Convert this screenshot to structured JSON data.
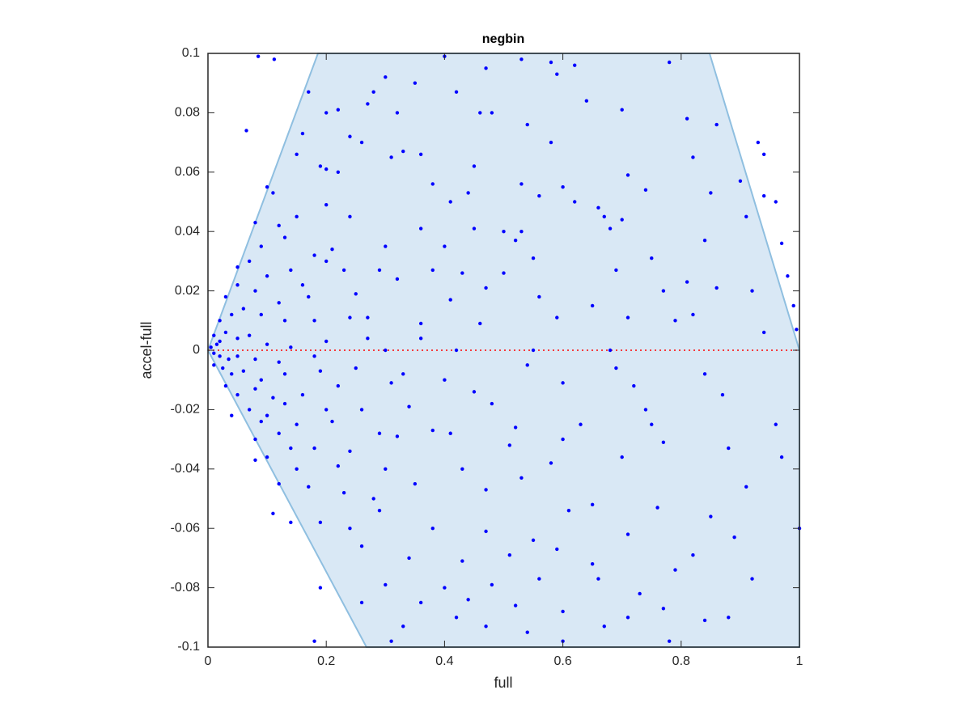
{
  "chart_data": {
    "type": "scatter",
    "title": "negbin",
    "xlabel": "full",
    "ylabel": "accel-full",
    "xlim": [
      0,
      1
    ],
    "ylim": [
      -0.1,
      0.1
    ],
    "xticks": [
      0,
      0.2,
      0.4,
      0.6,
      0.8,
      1
    ],
    "yticks": [
      -0.1,
      -0.08,
      -0.06,
      -0.04,
      -0.02,
      0,
      0.02,
      0.04,
      0.06,
      0.08,
      0.1
    ],
    "color": "#0000ff",
    "region": {
      "x": [
        0,
        0.186,
        0.848,
        1,
        1,
        0.268
      ],
      "y": [
        0,
        0.1,
        0.1,
        0,
        -0.1,
        -0.1
      ],
      "color": "#d9e8f5",
      "edge_color": "#8fbfe0"
    },
    "reference_line": {
      "y": 0,
      "color": "#ff0000"
    },
    "x": [
      0.085,
      0.112,
      0.4,
      0.53,
      0.58,
      0.62,
      0.78,
      0.065,
      0.17,
      0.28,
      0.3,
      0.35,
      0.42,
      0.47,
      0.59,
      0.64,
      0.7,
      0.81,
      0.86,
      0.2,
      0.22,
      0.27,
      0.32,
      0.46,
      0.48,
      0.54,
      0.58,
      0.16,
      0.24,
      0.26,
      0.93,
      0.94,
      0.15,
      0.33,
      0.36,
      0.45,
      0.19,
      0.2,
      0.22,
      0.31,
      0.82,
      0.53,
      0.6,
      0.71,
      0.9,
      0.1,
      0.11,
      0.38,
      0.41,
      0.44,
      0.56,
      0.62,
      0.66,
      0.74,
      0.85,
      0.94,
      0.96,
      0.08,
      0.12,
      0.15,
      0.2,
      0.24,
      0.36,
      0.45,
      0.5,
      0.53,
      0.67,
      0.68,
      0.7,
      0.91,
      0.09,
      0.13,
      0.18,
      0.21,
      0.3,
      0.4,
      0.52,
      0.55,
      0.84,
      0.97,
      0.75,
      0.05,
      0.07,
      0.1,
      0.14,
      0.16,
      0.2,
      0.23,
      0.29,
      0.38,
      0.43,
      0.5,
      0.69,
      0.81,
      0.92,
      0.98,
      0.03,
      0.05,
      0.08,
      0.12,
      0.17,
      0.25,
      0.32,
      0.41,
      0.47,
      0.56,
      0.65,
      0.77,
      0.86,
      0.99,
      0.02,
      0.04,
      0.06,
      0.09,
      0.13,
      0.18,
      0.24,
      0.27,
      0.36,
      0.46,
      0.59,
      0.71,
      0.79,
      0.82,
      0.94,
      0.995,
      0.01,
      0.02,
      0.03,
      0.05,
      0.07,
      0.1,
      0.14,
      0.2,
      0.27,
      0.36,
      0.005,
      0.01,
      0.015,
      0.02,
      0.035,
      0.05,
      0.08,
      0.12,
      0.18,
      0.3,
      0.42,
      0.55,
      0.68,
      0.01,
      0.025,
      0.04,
      0.06,
      0.09,
      0.13,
      0.19,
      0.25,
      0.33,
      0.4,
      0.54,
      0.69,
      0.03,
      0.05,
      0.08,
      0.11,
      0.16,
      0.22,
      0.31,
      0.45,
      0.6,
      0.72,
      0.84,
      0.07,
      0.09,
      0.1,
      0.13,
      0.2,
      0.26,
      0.34,
      0.48,
      0.63,
      0.74,
      0.87,
      0.04,
      0.08,
      0.12,
      0.15,
      0.21,
      0.29,
      0.38,
      0.52,
      0.75,
      0.96,
      0.1,
      0.14,
      0.18,
      0.24,
      0.32,
      0.41,
      0.51,
      0.6,
      0.77,
      0.88,
      0.08,
      0.15,
      0.22,
      0.3,
      0.43,
      0.58,
      0.7,
      0.91,
      0.97,
      0.12,
      0.17,
      0.23,
      0.28,
      0.35,
      0.47,
      0.53,
      0.65,
      0.76,
      0.85,
      1,
      0.11,
      0.14,
      0.19,
      0.24,
      0.29,
      0.38,
      0.47,
      0.55,
      0.61,
      0.71,
      0.89,
      0.26,
      0.34,
      0.43,
      0.51,
      0.59,
      0.65,
      0.79,
      0.82,
      0.19,
      0.3,
      0.4,
      0.48,
      0.56,
      0.66,
      0.73,
      0.92,
      0.26,
      0.36,
      0.44,
      0.52,
      0.6,
      0.71,
      0.77,
      0.33,
      0.42,
      0.47,
      0.54,
      0.67,
      0.84,
      0.88,
      0.18,
      0.31,
      0.6,
      0.78
    ],
    "values": [
      0.099,
      0.098,
      0.099,
      0.098,
      0.097,
      0.096,
      0.097,
      0.074,
      0.087,
      0.087,
      0.092,
      0.09,
      0.087,
      0.095,
      0.093,
      0.084,
      0.081,
      0.078,
      0.076,
      0.08,
      0.081,
      0.083,
      0.08,
      0.08,
      0.08,
      0.076,
      0.07,
      0.073,
      0.072,
      0.07,
      0.07,
      0.066,
      0.066,
      0.067,
      0.066,
      0.062,
      0.062,
      0.061,
      0.06,
      0.065,
      0.065,
      0.056,
      0.055,
      0.059,
      0.057,
      0.055,
      0.053,
      0.056,
      0.05,
      0.053,
      0.052,
      0.05,
      0.048,
      0.054,
      0.053,
      0.052,
      0.05,
      0.043,
      0.042,
      0.045,
      0.049,
      0.045,
      0.041,
      0.041,
      0.04,
      0.04,
      0.045,
      0.041,
      0.044,
      0.045,
      0.035,
      0.038,
      0.032,
      0.034,
      0.035,
      0.035,
      0.037,
      0.031,
      0.037,
      0.036,
      0.031,
      0.028,
      0.03,
      0.025,
      0.027,
      0.022,
      0.03,
      0.027,
      0.027,
      0.027,
      0.026,
      0.026,
      0.027,
      0.023,
      0.02,
      0.025,
      0.018,
      0.022,
      0.02,
      0.016,
      0.018,
      0.019,
      0.024,
      0.017,
      0.021,
      0.018,
      0.015,
      0.02,
      0.021,
      0.015,
      0.01,
      0.012,
      0.014,
      0.012,
      0.01,
      0.01,
      0.011,
      0.011,
      0.009,
      0.009,
      0.011,
      0.011,
      0.01,
      0.012,
      0.006,
      0.007,
      0.005,
      0.003,
      0.006,
      0.004,
      0.005,
      0.002,
      0.001,
      0.003,
      0.004,
      0.004,
      0.001,
      -0.001,
      0.002,
      -0.002,
      -0.003,
      -0.002,
      -0.003,
      -0.004,
      -0.002,
      0,
      0,
      0,
      0,
      -0.005,
      -0.006,
      -0.008,
      -0.007,
      -0.01,
      -0.008,
      -0.007,
      -0.006,
      -0.008,
      -0.01,
      -0.005,
      -0.006,
      -0.012,
      -0.015,
      -0.013,
      -0.016,
      -0.015,
      -0.012,
      -0.011,
      -0.014,
      -0.011,
      -0.012,
      -0.008,
      -0.02,
      -0.024,
      -0.022,
      -0.018,
      -0.02,
      -0.02,
      -0.019,
      -0.018,
      -0.025,
      -0.02,
      -0.015,
      -0.022,
      -0.03,
      -0.028,
      -0.025,
      -0.024,
      -0.028,
      -0.027,
      -0.026,
      -0.025,
      -0.025,
      -0.036,
      -0.033,
      -0.033,
      -0.034,
      -0.029,
      -0.028,
      -0.032,
      -0.03,
      -0.031,
      -0.033,
      -0.037,
      -0.04,
      -0.039,
      -0.04,
      -0.04,
      -0.038,
      -0.036,
      -0.046,
      -0.036,
      -0.045,
      -0.046,
      -0.048,
      -0.05,
      -0.045,
      -0.047,
      -0.043,
      -0.052,
      -0.053,
      -0.056,
      -0.06,
      -0.055,
      -0.058,
      -0.058,
      -0.06,
      -0.054,
      -0.06,
      -0.061,
      -0.064,
      -0.054,
      -0.062,
      -0.063,
      -0.066,
      -0.07,
      -0.071,
      -0.069,
      -0.067,
      -0.072,
      -0.074,
      -0.069,
      -0.08,
      -0.079,
      -0.08,
      -0.079,
      -0.077,
      -0.077,
      -0.082,
      -0.077,
      -0.085,
      -0.085,
      -0.084,
      -0.086,
      -0.088,
      -0.09,
      -0.087,
      -0.093,
      -0.09,
      -0.093,
      -0.095,
      -0.093,
      -0.091,
      -0.09,
      -0.098,
      -0.098,
      -0.098,
      -0.098
    ]
  }
}
